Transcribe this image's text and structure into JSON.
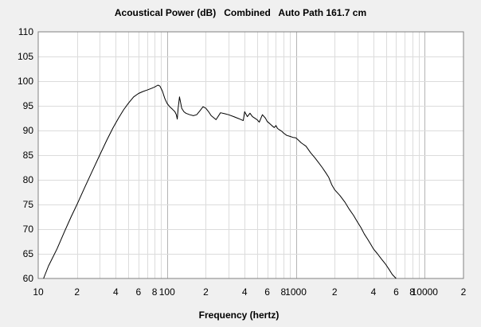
{
  "chart_data": {
    "type": "line",
    "title": "Acoustical Power (dB)   Combined   Auto Path 161.7 cm",
    "xlabel": "Frequency (hertz)",
    "ylabel": "",
    "xscale": "log",
    "xlim": [
      10,
      20000
    ],
    "ylim": [
      60,
      110
    ],
    "grid": true,
    "x_tick_labels": [
      {
        "x": 10,
        "label": "10"
      },
      {
        "x": 20,
        "label": "2"
      },
      {
        "x": 40,
        "label": "4"
      },
      {
        "x": 60,
        "label": "6"
      },
      {
        "x": 80,
        "label": "8"
      },
      {
        "x": 100,
        "label": "100"
      },
      {
        "x": 200,
        "label": "2"
      },
      {
        "x": 400,
        "label": "4"
      },
      {
        "x": 600,
        "label": "6"
      },
      {
        "x": 800,
        "label": "8"
      },
      {
        "x": 1000,
        "label": "1000"
      },
      {
        "x": 2000,
        "label": "2"
      },
      {
        "x": 4000,
        "label": "4"
      },
      {
        "x": 6000,
        "label": "6"
      },
      {
        "x": 8000,
        "label": "8"
      },
      {
        "x": 10000,
        "label": "10000"
      },
      {
        "x": 20000,
        "label": "2"
      }
    ],
    "y_ticks": [
      60,
      65,
      70,
      75,
      80,
      85,
      90,
      95,
      100,
      105,
      110
    ],
    "colors": {
      "line": "#000000",
      "grid_major": "#b4b4b4",
      "grid_minor": "#dcdcdc",
      "plot_bg": "#ffffff",
      "page_bg": "#f0f0f0"
    },
    "series": [
      {
        "x": [
          11,
          12,
          14,
          16,
          18,
          20,
          23,
          26,
          30,
          34,
          38,
          42,
          46,
          50,
          55,
          60,
          65,
          70,
          75,
          80,
          85,
          88,
          92,
          96,
          100,
          105,
          110,
          115,
          118,
          120,
          122,
          125,
          130,
          135,
          140,
          150,
          160,
          170,
          180,
          190,
          200,
          210,
          220,
          240,
          260,
          280,
          300,
          330,
          360,
          390,
          400,
          420,
          440,
          460,
          500,
          520,
          550,
          580,
          600,
          620,
          650,
          680,
          700,
          720,
          750,
          780,
          800,
          850,
          900,
          950,
          1000,
          1050,
          1100,
          1200,
          1300,
          1400,
          1500,
          1600,
          1700,
          1800,
          1900,
          2000,
          2200,
          2400,
          2600,
          2800,
          3000,
          3200,
          3400,
          3600,
          3800,
          4000,
          4300,
          4600,
          5000,
          5300,
          5600,
          6000
        ],
        "y": [
          60,
          62.5,
          66,
          69.5,
          72.5,
          75,
          78.5,
          81.5,
          85,
          88,
          90.5,
          92.5,
          94.2,
          95.5,
          96.8,
          97.5,
          97.9,
          98.2,
          98.5,
          98.8,
          99.2,
          99,
          98,
          96.5,
          95.5,
          94.8,
          94.3,
          93.8,
          93.2,
          92.3,
          94.5,
          96.8,
          94.5,
          93.8,
          93.5,
          93.2,
          93,
          93.2,
          94,
          94.8,
          94.5,
          93.8,
          93,
          92.2,
          93.6,
          93.4,
          93.2,
          92.8,
          92.4,
          92,
          93.8,
          92.8,
          93.5,
          92.8,
          92.2,
          91.7,
          93.2,
          92.5,
          91.8,
          91.5,
          91,
          90.6,
          91,
          90.4,
          90.1,
          89.8,
          89.5,
          89,
          88.8,
          88.6,
          88.5,
          88,
          87.5,
          86.8,
          85.5,
          84.5,
          83.5,
          82.5,
          81.5,
          80.5,
          79,
          78,
          76.8,
          75.5,
          74,
          72.8,
          71.5,
          70.3,
          69,
          68,
          67,
          66,
          65,
          64,
          62.8,
          61.8,
          60.8,
          60
        ]
      }
    ]
  }
}
